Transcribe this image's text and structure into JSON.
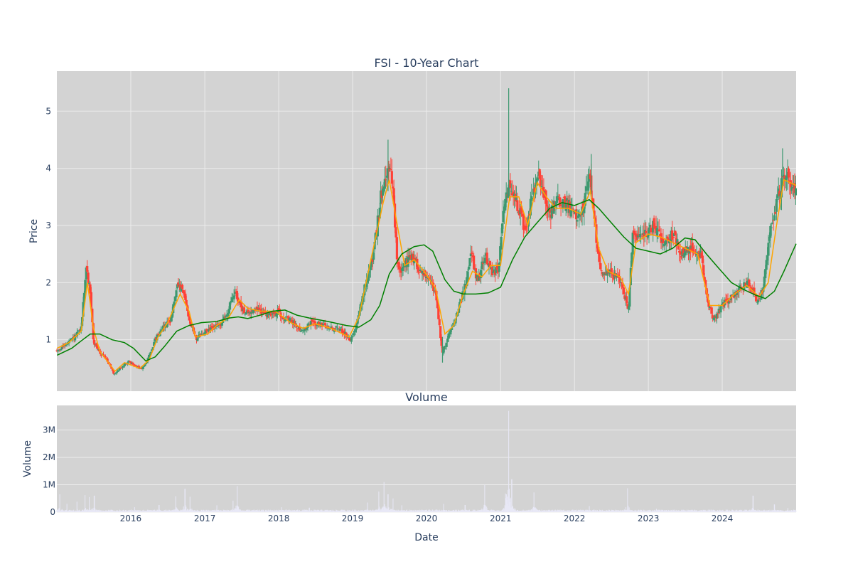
{
  "chart_data": [
    {
      "id": "price",
      "type": "candlestick",
      "title": "FSI - 10-Year Chart",
      "ylabel": "Price",
      "xlim": [
        "2015-01-01",
        "2024-12-31"
      ],
      "ylim": [
        0.1,
        5.7
      ],
      "yticks": [
        1,
        2,
        3,
        4,
        5
      ],
      "ytick_labels": [
        "1",
        "2",
        "3",
        "4",
        "5"
      ],
      "grid": true,
      "colors": {
        "up": "#3d9970",
        "down": "#ff4136",
        "ma_short": "#ffa500",
        "ma_long": "#008000",
        "background": "#d3d3d3"
      },
      "price_path": [
        [
          "2015-01-02",
          0.8
        ],
        [
          "2015-02-15",
          0.92
        ],
        [
          "2015-04-01",
          1.05
        ],
        [
          "2015-05-01",
          1.2
        ],
        [
          "2015-05-25",
          2.25
        ],
        [
          "2015-06-15",
          1.85
        ],
        [
          "2015-07-01",
          0.95
        ],
        [
          "2015-08-01",
          0.78
        ],
        [
          "2015-09-01",
          0.68
        ],
        [
          "2015-10-10",
          0.4
        ],
        [
          "2015-11-15",
          0.52
        ],
        [
          "2015-12-20",
          0.62
        ],
        [
          "2016-01-20",
          0.55
        ],
        [
          "2016-02-25",
          0.48
        ],
        [
          "2016-04-01",
          0.72
        ],
        [
          "2016-05-01",
          1.0
        ],
        [
          "2016-06-01",
          1.2
        ],
        [
          "2016-07-15",
          1.35
        ],
        [
          "2016-08-20",
          1.95
        ],
        [
          "2016-09-20",
          1.8
        ],
        [
          "2016-10-20",
          1.3
        ],
        [
          "2016-11-20",
          1.02
        ],
        [
          "2016-12-20",
          1.1
        ],
        [
          "2017-02-01",
          1.2
        ],
        [
          "2017-03-15",
          1.25
        ],
        [
          "2017-04-20",
          1.45
        ],
        [
          "2017-05-30",
          1.85
        ],
        [
          "2017-06-30",
          1.55
        ],
        [
          "2017-08-01",
          1.45
        ],
        [
          "2017-09-01",
          1.55
        ],
        [
          "2017-10-01",
          1.5
        ],
        [
          "2017-11-15",
          1.45
        ],
        [
          "2018-01-01",
          1.48
        ],
        [
          "2018-02-01",
          1.38
        ],
        [
          "2018-03-15",
          1.3
        ],
        [
          "2018-05-01",
          1.15
        ],
        [
          "2018-06-15",
          1.32
        ],
        [
          "2018-08-01",
          1.25
        ],
        [
          "2018-09-15",
          1.2
        ],
        [
          "2018-11-01",
          1.2
        ],
        [
          "2018-12-20",
          1.0
        ],
        [
          "2019-01-20",
          1.25
        ],
        [
          "2019-03-01",
          1.9
        ],
        [
          "2019-04-15",
          2.5
        ],
        [
          "2019-05-20",
          3.5
        ],
        [
          "2019-06-20",
          4.0
        ],
        [
          "2019-07-15",
          3.8
        ],
        [
          "2019-08-10",
          2.3
        ],
        [
          "2019-09-01",
          2.2
        ],
        [
          "2019-10-15",
          2.5
        ],
        [
          "2019-12-01",
          2.2
        ],
        [
          "2020-01-15",
          2.1
        ],
        [
          "2020-02-15",
          1.8
        ],
        [
          "2020-03-20",
          0.75
        ],
        [
          "2020-04-20",
          1.1
        ],
        [
          "2020-05-20",
          1.35
        ],
        [
          "2020-06-20",
          1.7
        ],
        [
          "2020-07-15",
          2.0
        ],
        [
          "2020-08-10",
          2.5
        ],
        [
          "2020-09-10",
          2.0
        ],
        [
          "2020-10-15",
          2.5
        ],
        [
          "2020-11-15",
          2.2
        ],
        [
          "2020-12-20",
          2.2
        ],
        [
          "2021-01-15",
          3.2
        ],
        [
          "2021-02-10",
          3.8
        ],
        [
          "2021-03-01",
          3.6
        ],
        [
          "2021-04-01",
          3.3
        ],
        [
          "2021-05-01",
          2.9
        ],
        [
          "2021-06-01",
          3.4
        ],
        [
          "2021-07-01",
          3.9
        ],
        [
          "2021-08-01",
          3.6
        ],
        [
          "2021-09-01",
          3.2
        ],
        [
          "2021-10-01",
          3.4
        ],
        [
          "2021-11-15",
          3.4
        ],
        [
          "2021-12-20",
          3.3
        ],
        [
          "2022-02-01",
          3.1
        ],
        [
          "2022-03-15",
          3.9
        ],
        [
          "2022-04-15",
          2.9
        ],
        [
          "2022-05-10",
          2.2
        ],
        [
          "2022-06-15",
          2.2
        ],
        [
          "2022-07-20",
          2.1
        ],
        [
          "2022-08-20",
          2.0
        ],
        [
          "2022-09-25",
          1.5
        ],
        [
          "2022-10-15",
          2.8
        ],
        [
          "2022-11-20",
          2.8
        ],
        [
          "2023-01-01",
          2.9
        ],
        [
          "2023-02-01",
          3.0
        ],
        [
          "2023-03-15",
          2.7
        ],
        [
          "2023-05-01",
          2.85
        ],
        [
          "2023-06-15",
          2.5
        ],
        [
          "2023-08-01",
          2.6
        ],
        [
          "2023-09-20",
          2.5
        ],
        [
          "2023-10-20",
          1.7
        ],
        [
          "2023-11-20",
          1.35
        ],
        [
          "2024-01-01",
          1.6
        ],
        [
          "2024-02-15",
          1.75
        ],
        [
          "2024-04-01",
          1.9
        ],
        [
          "2024-05-15",
          2.0
        ],
        [
          "2024-06-20",
          1.7
        ],
        [
          "2024-07-20",
          1.85
        ],
        [
          "2024-08-20",
          2.8
        ],
        [
          "2024-09-25",
          3.4
        ],
        [
          "2024-10-25",
          3.8
        ],
        [
          "2024-11-20",
          3.9
        ],
        [
          "2024-12-31",
          3.55
        ]
      ],
      "ma_short": [
        [
          "2015-01-02",
          0.85
        ],
        [
          "2015-03-01",
          0.95
        ],
        [
          "2015-05-01",
          1.15
        ],
        [
          "2015-06-01",
          2.0
        ],
        [
          "2015-07-01",
          1.2
        ],
        [
          "2015-08-01",
          0.8
        ],
        [
          "2015-10-15",
          0.45
        ],
        [
          "2015-12-01",
          0.6
        ],
        [
          "2016-02-15",
          0.5
        ],
        [
          "2016-04-01",
          0.65
        ],
        [
          "2016-05-15",
          1.05
        ],
        [
          "2016-07-01",
          1.3
        ],
        [
          "2016-09-01",
          1.8
        ],
        [
          "2016-10-15",
          1.5
        ],
        [
          "2016-11-15",
          1.05
        ],
        [
          "2017-01-15",
          1.1
        ],
        [
          "2017-03-01",
          1.25
        ],
        [
          "2017-05-01",
          1.4
        ],
        [
          "2017-06-20",
          1.7
        ],
        [
          "2017-08-01",
          1.55
        ],
        [
          "2017-10-01",
          1.5
        ],
        [
          "2017-12-15",
          1.5
        ],
        [
          "2018-03-01",
          1.3
        ],
        [
          "2018-05-01",
          1.2
        ],
        [
          "2018-07-01",
          1.28
        ],
        [
          "2018-09-15",
          1.2
        ],
        [
          "2018-12-15",
          1.05
        ],
        [
          "2019-02-01",
          1.4
        ],
        [
          "2019-04-01",
          2.4
        ],
        [
          "2019-06-01",
          3.4
        ],
        [
          "2019-07-01",
          3.8
        ],
        [
          "2019-08-10",
          3.0
        ],
        [
          "2019-09-15",
          2.3
        ],
        [
          "2019-11-01",
          2.4
        ],
        [
          "2019-12-20",
          2.2
        ],
        [
          "2020-02-15",
          1.9
        ],
        [
          "2020-04-01",
          1.1
        ],
        [
          "2020-05-15",
          1.25
        ],
        [
          "2020-07-01",
          1.8
        ],
        [
          "2020-08-15",
          2.2
        ],
        [
          "2020-10-01",
          2.1
        ],
        [
          "2020-11-15",
          2.3
        ],
        [
          "2021-01-01",
          2.3
        ],
        [
          "2021-02-15",
          3.5
        ],
        [
          "2021-04-01",
          3.5
        ],
        [
          "2021-05-15",
          3.0
        ],
        [
          "2021-07-01",
          3.75
        ],
        [
          "2021-08-15",
          3.5
        ],
        [
          "2021-10-01",
          3.3
        ],
        [
          "2021-12-01",
          3.3
        ],
        [
          "2022-02-01",
          3.2
        ],
        [
          "2022-03-20",
          3.6
        ],
        [
          "2022-05-01",
          2.6
        ],
        [
          "2022-06-15",
          2.2
        ],
        [
          "2022-08-15",
          2.1
        ],
        [
          "2022-09-25",
          1.8
        ],
        [
          "2022-11-01",
          2.7
        ],
        [
          "2023-01-01",
          2.85
        ],
        [
          "2023-03-01",
          2.8
        ],
        [
          "2023-05-01",
          2.7
        ],
        [
          "2023-07-01",
          2.6
        ],
        [
          "2023-09-01",
          2.5
        ],
        [
          "2023-11-01",
          1.6
        ],
        [
          "2024-01-01",
          1.6
        ],
        [
          "2024-03-01",
          1.8
        ],
        [
          "2024-05-01",
          1.95
        ],
        [
          "2024-07-01",
          1.75
        ],
        [
          "2024-08-15",
          2.0
        ],
        [
          "2024-09-25",
          3.0
        ],
        [
          "2024-11-01",
          3.8
        ],
        [
          "2024-12-31",
          3.7
        ]
      ],
      "ma_long": [
        [
          "2015-01-02",
          0.73
        ],
        [
          "2015-03-15",
          0.85
        ],
        [
          "2015-05-01",
          0.98
        ],
        [
          "2015-06-15",
          1.1
        ],
        [
          "2015-08-01",
          1.1
        ],
        [
          "2015-10-01",
          1.0
        ],
        [
          "2015-12-01",
          0.95
        ],
        [
          "2016-01-15",
          0.85
        ],
        [
          "2016-03-15",
          0.63
        ],
        [
          "2016-05-01",
          0.7
        ],
        [
          "2016-06-15",
          0.88
        ],
        [
          "2016-08-15",
          1.15
        ],
        [
          "2016-10-15",
          1.25
        ],
        [
          "2016-12-15",
          1.3
        ],
        [
          "2017-03-01",
          1.32
        ],
        [
          "2017-05-01",
          1.38
        ],
        [
          "2017-06-15",
          1.4
        ],
        [
          "2017-08-01",
          1.37
        ],
        [
          "2017-10-01",
          1.43
        ],
        [
          "2017-12-01",
          1.5
        ],
        [
          "2018-02-01",
          1.52
        ],
        [
          "2018-04-01",
          1.43
        ],
        [
          "2018-06-01",
          1.38
        ],
        [
          "2018-09-01",
          1.32
        ],
        [
          "2018-12-01",
          1.25
        ],
        [
          "2019-02-01",
          1.22
        ],
        [
          "2019-04-01",
          1.35
        ],
        [
          "2019-05-15",
          1.6
        ],
        [
          "2019-07-01",
          2.15
        ],
        [
          "2019-09-01",
          2.5
        ],
        [
          "2019-11-01",
          2.63
        ],
        [
          "2019-12-20",
          2.66
        ],
        [
          "2020-02-01",
          2.55
        ],
        [
          "2020-04-01",
          2.05
        ],
        [
          "2020-05-15",
          1.85
        ],
        [
          "2020-07-01",
          1.8
        ],
        [
          "2020-09-01",
          1.8
        ],
        [
          "2020-11-01",
          1.82
        ],
        [
          "2021-01-01",
          1.92
        ],
        [
          "2021-03-01",
          2.4
        ],
        [
          "2021-05-01",
          2.8
        ],
        [
          "2021-07-01",
          3.05
        ],
        [
          "2021-09-01",
          3.3
        ],
        [
          "2021-11-01",
          3.4
        ],
        [
          "2022-01-01",
          3.35
        ],
        [
          "2022-03-15",
          3.45
        ],
        [
          "2022-05-01",
          3.3
        ],
        [
          "2022-07-01",
          3.05
        ],
        [
          "2022-09-01",
          2.8
        ],
        [
          "2022-11-01",
          2.6
        ],
        [
          "2023-01-01",
          2.55
        ],
        [
          "2023-03-01",
          2.5
        ],
        [
          "2023-05-01",
          2.6
        ],
        [
          "2023-07-01",
          2.78
        ],
        [
          "2023-08-20",
          2.75
        ],
        [
          "2023-10-15",
          2.5
        ],
        [
          "2023-12-15",
          2.25
        ],
        [
          "2024-02-15",
          2.0
        ],
        [
          "2024-04-15",
          1.88
        ],
        [
          "2024-06-15",
          1.78
        ],
        [
          "2024-08-01",
          1.72
        ],
        [
          "2024-09-15",
          1.85
        ],
        [
          "2024-11-01",
          2.2
        ],
        [
          "2024-12-31",
          2.68
        ]
      ]
    },
    {
      "id": "volume",
      "type": "bar",
      "title": "Volume",
      "xlabel": "Date",
      "ylabel": "Volume",
      "xlim": [
        "2015-01-01",
        "2024-12-31"
      ],
      "ylim": [
        0,
        3900000
      ],
      "yticks": [
        0,
        1000000,
        2000000,
        3000000
      ],
      "ytick_labels": [
        "0",
        "1M",
        "2M",
        "3M"
      ],
      "xticks": [
        "2016-01-01",
        "2017-01-01",
        "2018-01-01",
        "2019-01-01",
        "2020-01-01",
        "2021-01-01",
        "2022-01-01",
        "2023-01-01",
        "2024-01-01"
      ],
      "xtick_labels": [
        "2016",
        "2017",
        "2018",
        "2019",
        "2020",
        "2021",
        "2022",
        "2023",
        "2024"
      ],
      "grid": true,
      "colors": {
        "bar": "#e8e8f6",
        "background": "#d3d3d3"
      },
      "base_volume": 60000,
      "volume_bursts": [
        [
          "2015-01-15",
          650000
        ],
        [
          "2015-02-20",
          300000
        ],
        [
          "2015-04-10",
          380000
        ],
        [
          "2015-05-20",
          620000
        ],
        [
          "2015-06-10",
          550000
        ],
        [
          "2015-07-05",
          600000
        ],
        [
          "2016-01-20",
          180000
        ],
        [
          "2016-05-20",
          260000
        ],
        [
          "2016-08-10",
          580000
        ],
        [
          "2016-09-25",
          850000
        ],
        [
          "2016-10-20",
          560000
        ],
        [
          "2017-03-01",
          250000
        ],
        [
          "2017-05-20",
          420000
        ],
        [
          "2017-06-10",
          950000
        ],
        [
          "2018-01-15",
          180000
        ],
        [
          "2018-06-01",
          160000
        ],
        [
          "2019-03-15",
          350000
        ],
        [
          "2019-05-10",
          750000
        ],
        [
          "2019-06-05",
          1100000
        ],
        [
          "2019-06-25",
          650000
        ],
        [
          "2019-07-20",
          500000
        ],
        [
          "2019-09-01",
          250000
        ],
        [
          "2020-03-25",
          300000
        ],
        [
          "2020-07-10",
          260000
        ],
        [
          "2020-10-15",
          1000000
        ],
        [
          "2021-01-25",
          680000
        ],
        [
          "2021-02-10",
          3700000
        ],
        [
          "2021-02-25",
          1200000
        ],
        [
          "2021-06-15",
          720000
        ],
        [
          "2022-03-15",
          220000
        ],
        [
          "2022-09-20",
          870000
        ],
        [
          "2023-02-10",
          120000
        ],
        [
          "2024-06-01",
          600000
        ],
        [
          "2024-09-15",
          280000
        ],
        [
          "2024-11-20",
          150000
        ]
      ]
    }
  ]
}
